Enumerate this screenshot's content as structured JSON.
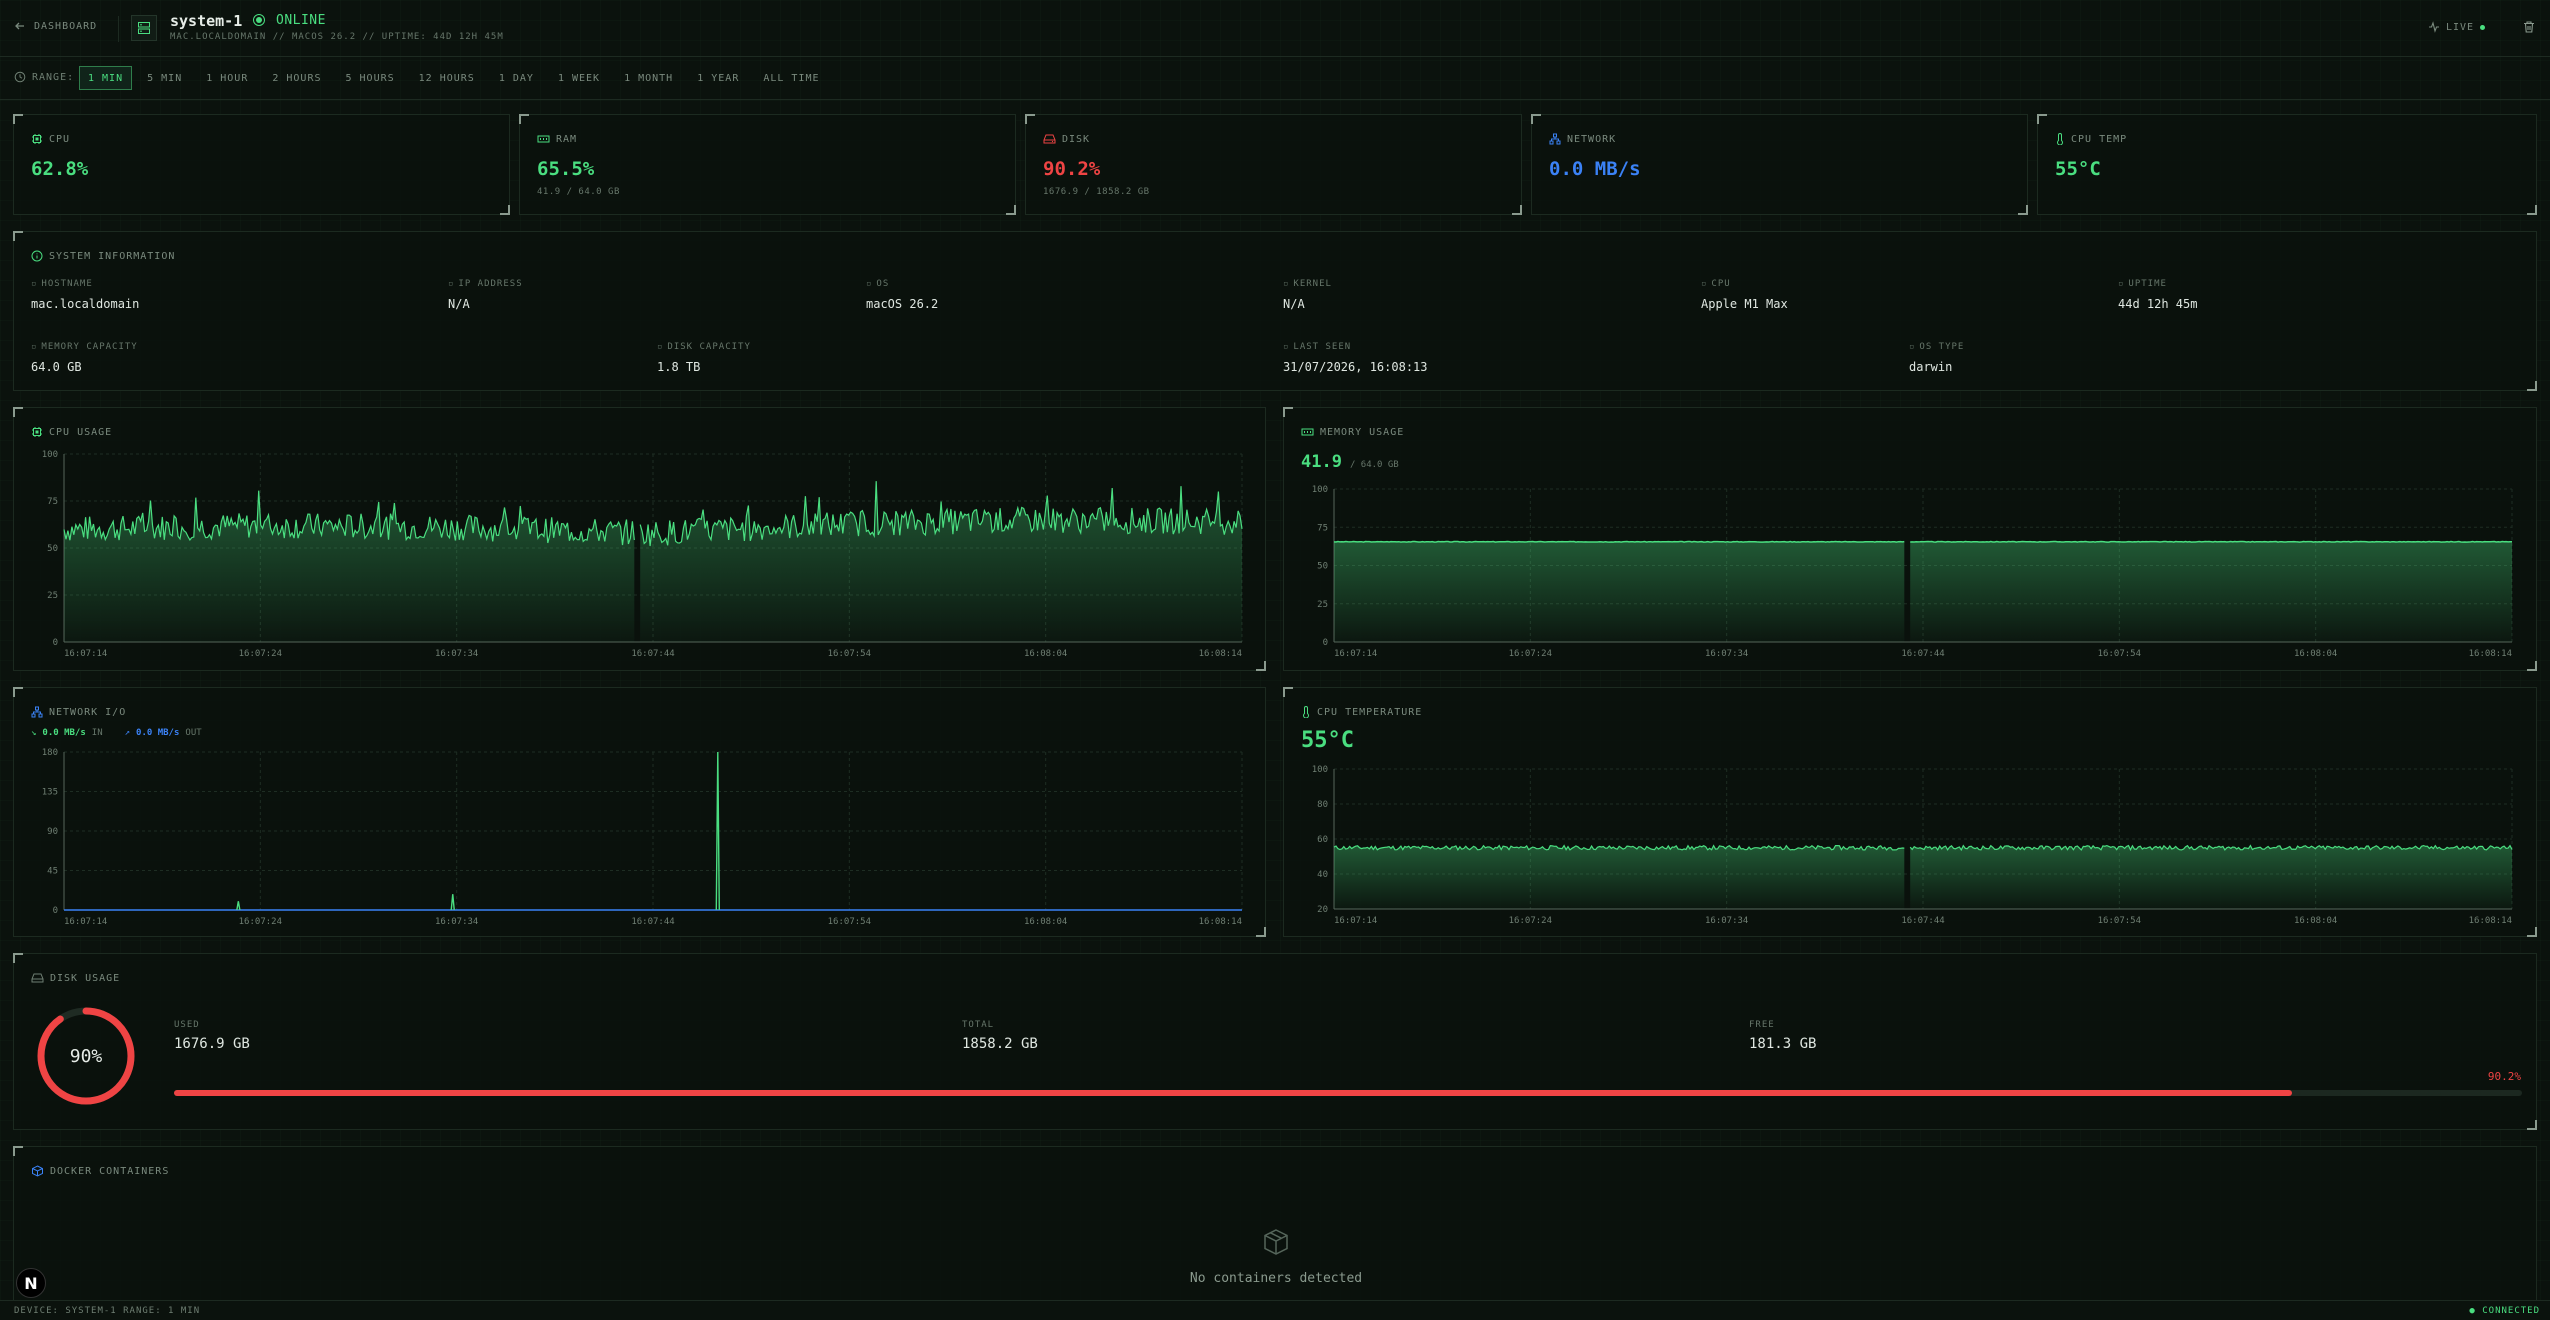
{
  "header": {
    "back_label": "DASHBOARD",
    "device_name": "system-1",
    "status": "ONLINE",
    "meta": "MAC.LOCALDOMAIN // MACOS 26.2 // UPTIME: 44D 12H 45M",
    "live_label": "LIVE"
  },
  "range": {
    "label": "RANGE:",
    "options": [
      "1 MIN",
      "5 MIN",
      "1 HOUR",
      "2 HOURS",
      "5 HOURS",
      "12 HOURS",
      "1 DAY",
      "1 WEEK",
      "1 MONTH",
      "1 YEAR",
      "ALL TIME"
    ],
    "active": "1 MIN"
  },
  "stats": {
    "cpu": {
      "label": "CPU",
      "value": "62.8%"
    },
    "ram": {
      "label": "RAM",
      "value": "65.5%",
      "sub": "41.9 / 64.0 GB"
    },
    "disk": {
      "label": "DISK",
      "value": "90.2%",
      "sub": "1676.9 / 1858.2 GB"
    },
    "network": {
      "label": "NETWORK",
      "value": "0.0 MB/s"
    },
    "cpu_temp": {
      "label": "CPU TEMP",
      "value": "55°C"
    }
  },
  "system_info": {
    "title": "SYSTEM INFORMATION",
    "row1": [
      {
        "label": "HOSTNAME",
        "value": "mac.localdomain"
      },
      {
        "label": "IP ADDRESS",
        "value": "N/A"
      },
      {
        "label": "OS",
        "value": "macOS 26.2"
      },
      {
        "label": "KERNEL",
        "value": "N/A"
      },
      {
        "label": "CPU",
        "value": "Apple M1 Max"
      },
      {
        "label": "UPTIME",
        "value": "44d 12h 45m"
      }
    ],
    "row2": [
      {
        "label": "MEMORY CAPACITY",
        "value": "64.0 GB"
      },
      {
        "label": "DISK CAPACITY",
        "value": "1.8 TB"
      },
      {
        "label": "LAST SEEN",
        "value": "31/07/2026, 16:08:13"
      },
      {
        "label": "OS TYPE",
        "value": "darwin"
      }
    ]
  },
  "time_ticks": [
    "16:07:14",
    "16:07:24",
    "16:07:34",
    "16:07:44",
    "16:07:54",
    "16:08:04",
    "16:08:14"
  ],
  "cpu_usage": {
    "title": "CPU USAGE"
  },
  "memory_usage": {
    "title": "MEMORY USAGE",
    "value": "41.9",
    "unit": "/ 64.0 GB"
  },
  "network_io": {
    "title": "NETWORK I/O",
    "in_value": "0.0 MB/s",
    "in_label": "IN",
    "out_value": "0.0 MB/s",
    "out_label": "OUT"
  },
  "cpu_temperature": {
    "title": "CPU TEMPERATURE",
    "value": "55°C"
  },
  "disk_usage": {
    "title": "DISK USAGE",
    "percent_label": "90%",
    "used_label": "USED",
    "used_value": "1676.9 GB",
    "total_label": "TOTAL",
    "total_value": "1858.2 GB",
    "free_label": "FREE",
    "free_value": "181.3 GB",
    "bar_label": "90.2%",
    "fraction": 0.902
  },
  "docker": {
    "title": "DOCKER CONTAINERS",
    "empty_text": "No containers detected"
  },
  "footer": {
    "left": "DEVICE: SYSTEM-1   RANGE: 1 MIN",
    "right": "● CONNECTED"
  },
  "colors": {
    "green": "#4ade80",
    "red": "#ef4444",
    "blue": "#3b82f6"
  },
  "chart_data": [
    {
      "type": "area",
      "title": "CPU USAGE",
      "ylim": [
        0,
        100
      ],
      "yticks": [
        0,
        25,
        50,
        75,
        100
      ],
      "x": [
        "16:07:14",
        "16:07:24",
        "16:07:34",
        "16:07:44",
        "16:07:54",
        "16:08:04",
        "16:08:14"
      ],
      "series": [
        {
          "values": [
            60,
            62,
            61,
            58,
            63,
            65,
            64
          ]
        }
      ]
    },
    {
      "type": "area",
      "title": "MEMORY USAGE",
      "ylim": [
        0,
        100
      ],
      "yticks": [
        0,
        25,
        50,
        75,
        100
      ],
      "x": [
        "16:07:14",
        "16:07:24",
        "16:07:34",
        "16:07:44",
        "16:07:54",
        "16:08:04",
        "16:08:14"
      ],
      "series": [
        {
          "values": [
            65.5,
            65.5,
            65.5,
            65.5,
            65.5,
            65.5,
            65.5
          ]
        }
      ]
    },
    {
      "type": "line",
      "title": "NETWORK I/O",
      "ylim": [
        0,
        180
      ],
      "yticks": [
        0,
        45,
        90,
        135,
        180
      ],
      "x": [
        "16:07:14",
        "16:07:24",
        "16:07:34",
        "16:07:44",
        "16:07:54",
        "16:08:04",
        "16:08:14"
      ],
      "series": [
        {
          "name": "IN",
          "values": [
            0,
            0,
            0,
            0,
            0,
            0,
            0
          ]
        },
        {
          "name": "OUT",
          "values": [
            0,
            0,
            0,
            0,
            0,
            0,
            0
          ]
        }
      ]
    },
    {
      "type": "area",
      "title": "CPU TEMPERATURE",
      "ylim": [
        20,
        100
      ],
      "yticks": [
        20,
        40,
        60,
        80,
        100
      ],
      "x": [
        "16:07:14",
        "16:07:24",
        "16:07:34",
        "16:07:44",
        "16:07:54",
        "16:08:04",
        "16:08:14"
      ],
      "series": [
        {
          "values": [
            55,
            55,
            55,
            55,
            55,
            55,
            55
          ]
        }
      ]
    }
  ]
}
